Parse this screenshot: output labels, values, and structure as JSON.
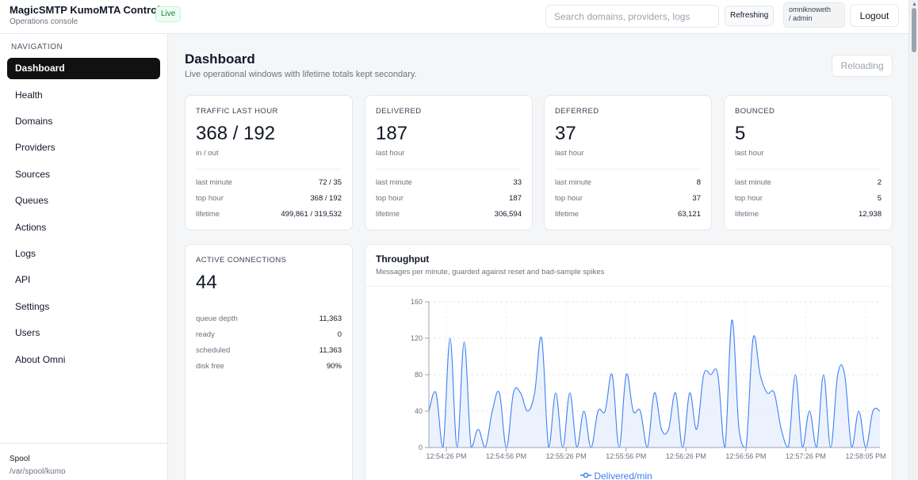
{
  "header": {
    "app_title": "MagicSMTP KumoMTA Control",
    "app_subtitle": "Operations console",
    "live_badge": "Live",
    "search_placeholder": "Search domains, providers, logs",
    "refresh_status": "Refreshing",
    "user_line1": "omniknoweth",
    "user_line2": "/ admin",
    "logout_label": "Logout"
  },
  "sidebar": {
    "heading": "NAVIGATION",
    "items": [
      {
        "label": "Dashboard",
        "active": true
      },
      {
        "label": "Health"
      },
      {
        "label": "Domains"
      },
      {
        "label": "Providers"
      },
      {
        "label": "Sources"
      },
      {
        "label": "Queues"
      },
      {
        "label": "Actions"
      },
      {
        "label": "Logs"
      },
      {
        "label": "API"
      },
      {
        "label": "Settings"
      },
      {
        "label": "Users"
      },
      {
        "label": "About Omni"
      }
    ],
    "spool_title": "Spool",
    "spool_path": "/var/spool/kumo"
  },
  "page": {
    "title": "Dashboard",
    "subtitle": "Live operational windows with lifetime totals kept secondary.",
    "reload_label": "Reloading"
  },
  "stats": [
    {
      "label": "TRAFFIC LAST HOUR",
      "value": "368 / 192",
      "caption": "in / out",
      "rows": [
        {
          "label": "last minute",
          "value": "72 / 35"
        },
        {
          "label": "top hour",
          "value": "368 / 192"
        },
        {
          "label": "lifetime",
          "value": "499,861 / 319,532"
        }
      ]
    },
    {
      "label": "DELIVERED",
      "value": "187",
      "caption": "last hour",
      "rows": [
        {
          "label": "last minute",
          "value": "33"
        },
        {
          "label": "top hour",
          "value": "187"
        },
        {
          "label": "lifetime",
          "value": "306,594"
        }
      ]
    },
    {
      "label": "DEFERRED",
      "value": "37",
      "caption": "last hour",
      "rows": [
        {
          "label": "last minute",
          "value": "8"
        },
        {
          "label": "top hour",
          "value": "37"
        },
        {
          "label": "lifetime",
          "value": "63,121"
        }
      ]
    },
    {
      "label": "BOUNCED",
      "value": "5",
      "caption": "last hour",
      "rows": [
        {
          "label": "last minute",
          "value": "2"
        },
        {
          "label": "top hour",
          "value": "5"
        },
        {
          "label": "lifetime",
          "value": "12,938"
        }
      ]
    }
  ],
  "connections": {
    "label": "ACTIVE CONNECTIONS",
    "value": "44",
    "rows": [
      {
        "label": "queue depth",
        "value": "11,363"
      },
      {
        "label": "ready",
        "value": "0"
      },
      {
        "label": "scheduled",
        "value": "11,363"
      },
      {
        "label": "disk free",
        "value": "90%"
      }
    ]
  },
  "throughput": {
    "title": "Throughput",
    "subtitle": "Messages per minute, guarded against reset and bad-sample spikes",
    "legend": "Delivered/min"
  },
  "colors": {
    "accent": "#3b82f6",
    "fill": "#eaf1fd",
    "active_nav": "#111111",
    "live": "#15803d"
  },
  "chart_data": {
    "type": "area",
    "xlabels": [
      "12:54:26 PM",
      "12:54:56 PM",
      "12:55:26 PM",
      "12:55:56 PM",
      "12:56:26 PM",
      "12:56:56 PM",
      "12:57:26 PM",
      "12:58:05 PM"
    ],
    "yticks": [
      0,
      40,
      80,
      120,
      160
    ],
    "ylim": [
      0,
      160
    ],
    "series": [
      {
        "name": "Delivered/min",
        "values": [
          40,
          60,
          0,
          120,
          0,
          116,
          0,
          20,
          0,
          40,
          60,
          0,
          60,
          60,
          40,
          60,
          120,
          0,
          60,
          0,
          60,
          0,
          40,
          0,
          40,
          40,
          80,
          0,
          80,
          40,
          40,
          0,
          60,
          20,
          20,
          60,
          0,
          60,
          20,
          80,
          80,
          80,
          0,
          140,
          20,
          0,
          120,
          80,
          60,
          60,
          20,
          0,
          80,
          0,
          40,
          0,
          80,
          0,
          80,
          80,
          0,
          40,
          0,
          40,
          40
        ]
      }
    ],
    "legend": "bottom",
    "grid": true
  }
}
